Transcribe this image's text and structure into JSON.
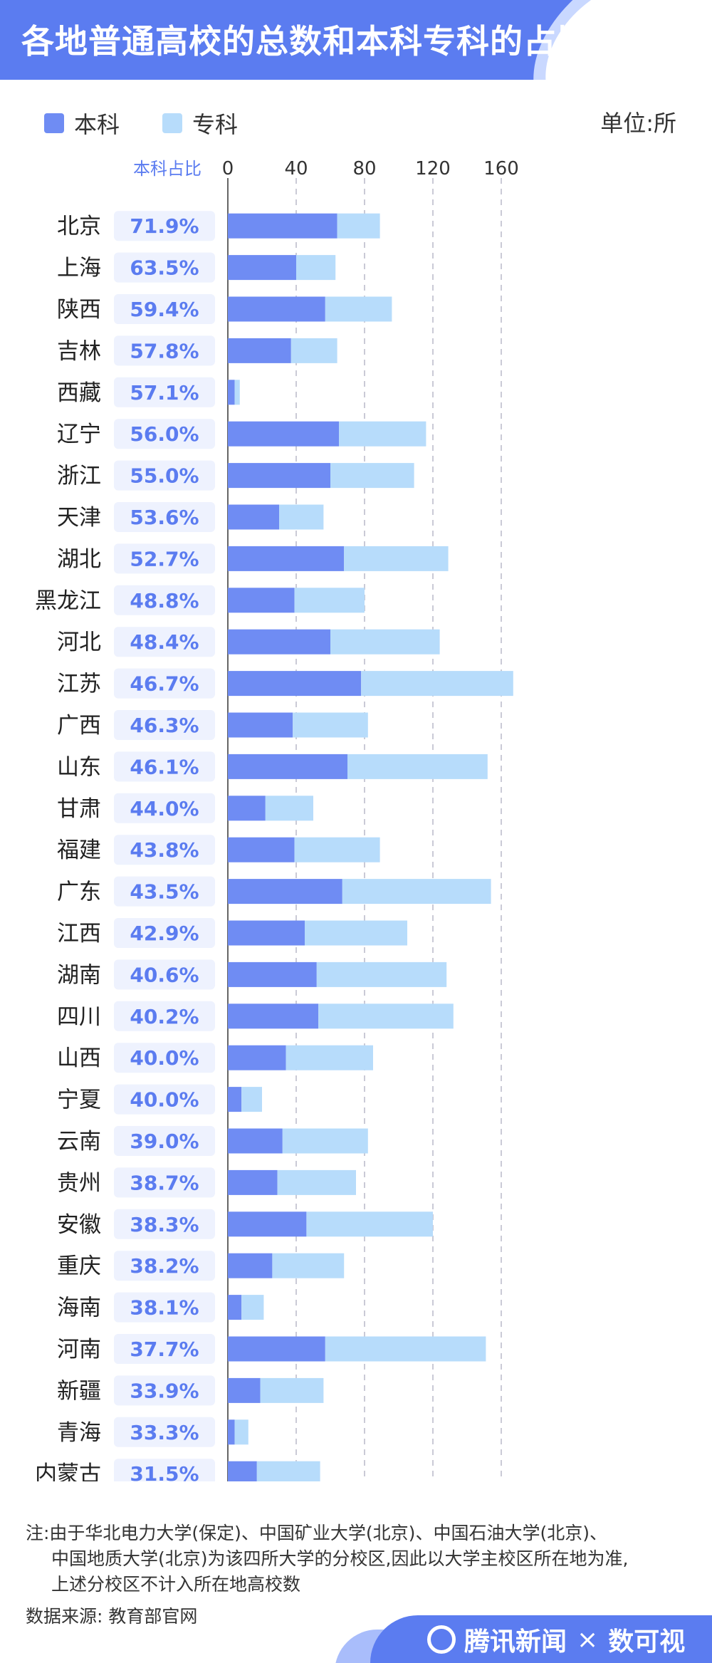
{
  "title": "各地普通高校的总数和本科专科的占比",
  "unit": "单位:所",
  "legend": [
    {
      "name": "本科",
      "color": "#6f8cf3"
    },
    {
      "name": "专科",
      "color": "#b7dcfb"
    }
  ],
  "note_line1": "注:由于华北电力大学(保定)、中国矿业大学(北京)、中国石油大学(北京)、",
  "note_line2": "中国地质大学(北京)为该四所大学的分校区,因此以大学主校区所在地为准,",
  "note_line3": "上述分校区不计入所在地高校数",
  "source": "数据来源: 教育部官网",
  "brand": {
    "name": "腾讯新闻",
    "sep": "×",
    "partner": "数可视"
  },
  "chart_data": {
    "type": "bar",
    "stacked": true,
    "orientation": "horizontal",
    "ratio_header": "本科占比",
    "xlim": [
      0,
      170
    ],
    "xticks": [
      "0",
      "40",
      "80",
      "120",
      "160"
    ],
    "xtick_values": [
      0,
      40,
      80,
      120,
      160
    ],
    "grid": true,
    "legend_position": "top-left",
    "categories": [
      "北京",
      "上海",
      "陕西",
      "吉林",
      "西藏",
      "辽宁",
      "浙江",
      "天津",
      "湖北",
      "黑龙江",
      "河北",
      "江苏",
      "广西",
      "山东",
      "甘肃",
      "福建",
      "广东",
      "江西",
      "湖南",
      "四川",
      "山西",
      "宁夏",
      "云南",
      "贵州",
      "安徽",
      "重庆",
      "海南",
      "河南",
      "新疆",
      "青海",
      "内蒙古"
    ],
    "ratios": [
      "71.9%",
      "63.5%",
      "59.4%",
      "57.8%",
      "57.1%",
      "56.0%",
      "55.0%",
      "53.6%",
      "52.7%",
      "48.8%",
      "48.4%",
      "46.7%",
      "46.3%",
      "46.1%",
      "44.0%",
      "43.8%",
      "43.5%",
      "42.9%",
      "40.6%",
      "40.2%",
      "40.0%",
      "40.0%",
      "39.0%",
      "38.7%",
      "38.3%",
      "38.2%",
      "38.1%",
      "37.7%",
      "33.9%",
      "33.3%",
      "31.5%"
    ],
    "series": [
      {
        "name": "本科",
        "color": "#6f8cf3",
        "values": [
          64,
          40,
          57,
          37,
          4,
          65,
          60,
          30,
          68,
          39,
          60,
          78,
          38,
          70,
          22,
          39,
          67,
          45,
          52,
          53,
          34,
          8,
          32,
          29,
          46,
          26,
          8,
          57,
          19,
          4,
          17
        ]
      },
      {
        "name": "专科",
        "color": "#b7dcfb",
        "values": [
          25,
          23,
          39,
          27,
          3,
          51,
          49,
          26,
          61,
          41,
          64,
          89,
          44,
          82,
          28,
          50,
          87,
          60,
          76,
          79,
          51,
          12,
          50,
          46,
          74,
          42,
          13,
          94,
          37,
          8,
          37
        ]
      }
    ]
  }
}
